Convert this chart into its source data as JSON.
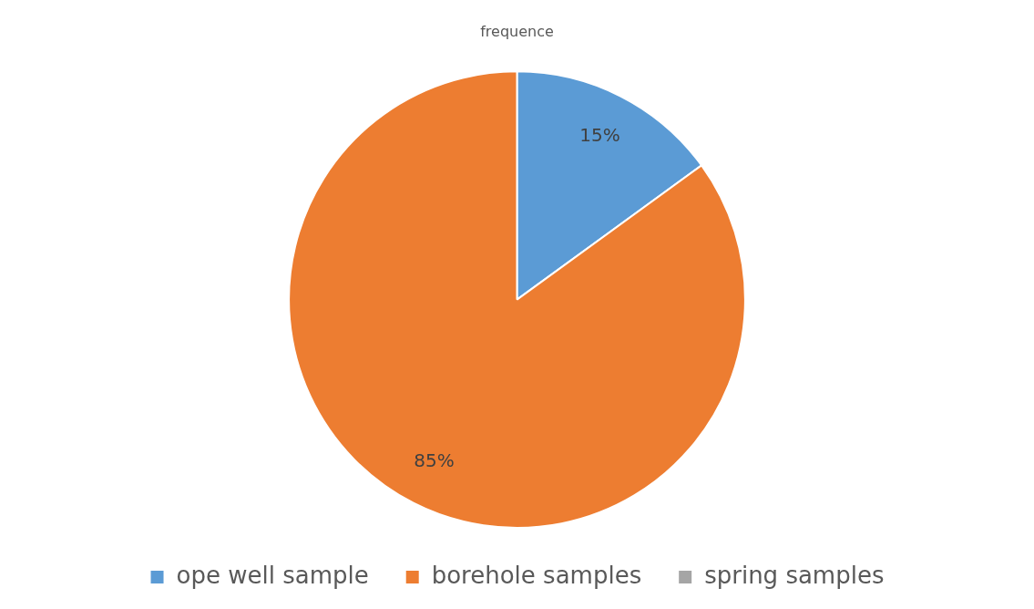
{
  "chart_data": {
    "type": "pie",
    "title": "frequence",
    "categories": [
      "ope well sample",
      "borehole samples",
      "spring samples"
    ],
    "values": [
      15,
      85,
      0
    ],
    "colors": [
      "#5b9bd5",
      "#ed7d31",
      "#a5a5a5"
    ],
    "value_labels": [
      "15%",
      "85%",
      null
    ],
    "legend": "bottom"
  }
}
